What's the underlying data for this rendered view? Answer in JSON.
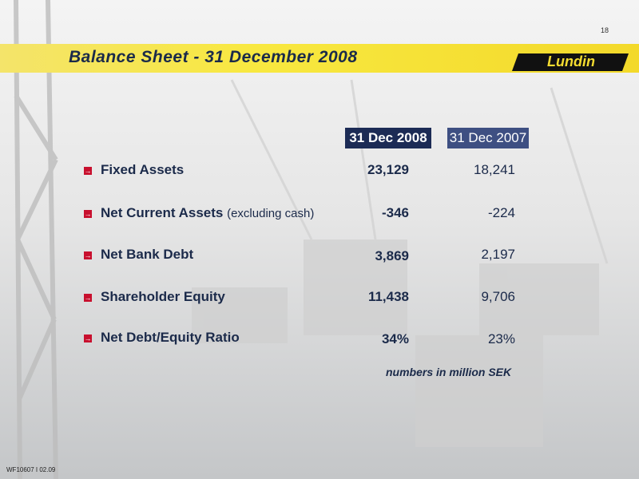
{
  "page_number": "18",
  "header": {
    "title": "Balance Sheet - 31 December 2008",
    "logo": "Lundin"
  },
  "table": {
    "columns": [
      "31 Dec 2008",
      "31 Dec 2007"
    ],
    "rows": [
      {
        "label": "Fixed Assets",
        "values": [
          "23,129",
          "18,241"
        ]
      },
      {
        "label": "Net Current Assets",
        "note": "(excluding cash)",
        "values": [
          "-346",
          "-224"
        ]
      },
      {
        "label": "Net Bank Debt",
        "values": [
          "3,869",
          "2,197"
        ]
      },
      {
        "label": "Shareholder Equity",
        "values": [
          "11,438",
          "9,706"
        ]
      },
      {
        "label": "Net Debt/Equity Ratio",
        "values": [
          "34%",
          "23%"
        ]
      }
    ],
    "footnote": "numbers in million SEK"
  },
  "footer": {
    "code": "WF10607 I 02.09"
  }
}
